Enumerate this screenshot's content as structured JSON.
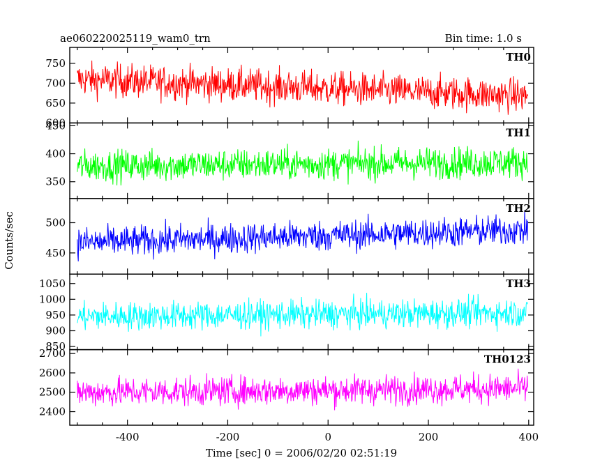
{
  "header": {
    "title": "ae060220025119_wam0_trn",
    "bin_time": "Bin time: 1.0 s"
  },
  "axes": {
    "ylabel": "Counts/sec",
    "xlabel": "Time [sec] 0 = 2006/02/20 02:51:19"
  },
  "chart_data": {
    "type": "line",
    "x_range": [
      -515,
      410
    ],
    "x_ticks": [
      -400,
      -200,
      0,
      200,
      400
    ],
    "bin_time_s": 1.0,
    "panels": [
      {
        "name": "TH0",
        "color": "#ff0000",
        "ylim": [
          600,
          790
        ],
        "yticks": [
          600,
          650,
          700,
          750
        ],
        "start_mean": 710,
        "end_mean": 668,
        "noise_amp": 42
      },
      {
        "name": "TH1",
        "color": "#00ff00",
        "ylim": [
          320,
          455
        ],
        "yticks": [
          350,
          400,
          450
        ],
        "start_mean": 378,
        "end_mean": 385,
        "noise_amp": 28
      },
      {
        "name": "TH2",
        "color": "#0000ff",
        "ylim": [
          415,
          540
        ],
        "yticks": [
          450,
          500
        ],
        "start_mean": 467,
        "end_mean": 488,
        "noise_amp": 25
      },
      {
        "name": "TH3",
        "color": "#00ffff",
        "ylim": [
          840,
          1080
        ],
        "yticks": [
          850,
          900,
          950,
          1000,
          1050
        ],
        "start_mean": 945,
        "end_mean": 958,
        "noise_amp": 45
      },
      {
        "name": "TH0123",
        "color": "#ff00ff",
        "ylim": [
          2330,
          2720
        ],
        "yticks": [
          2400,
          2500,
          2600,
          2700
        ],
        "start_mean": 2500,
        "end_mean": 2520,
        "noise_amp": 75
      }
    ]
  }
}
